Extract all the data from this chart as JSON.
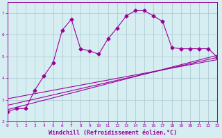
{
  "bg_color": "#d6eef2",
  "grid_color": "#b0cdd4",
  "line_color": "#990099",
  "xlabel": "Windchill (Refroidissement éolien,°C)",
  "xlim": [
    0,
    23
  ],
  "ylim": [
    2,
    7.5
  ],
  "xticks": [
    0,
    1,
    2,
    3,
    4,
    5,
    6,
    7,
    8,
    9,
    10,
    11,
    12,
    13,
    14,
    15,
    16,
    17,
    18,
    19,
    20,
    21,
    22,
    23
  ],
  "yticks": [
    2,
    3,
    4,
    5,
    6,
    7
  ],
  "main_x": [
    0,
    1,
    2,
    3,
    4,
    5,
    6,
    7,
    8,
    9,
    10,
    11,
    12,
    13,
    14,
    15,
    16,
    17,
    18,
    19,
    20,
    21,
    22,
    23
  ],
  "main_y": [
    2.45,
    2.6,
    2.6,
    3.45,
    4.1,
    4.7,
    6.2,
    6.7,
    5.35,
    5.25,
    5.1,
    5.8,
    6.3,
    6.85,
    7.1,
    7.1,
    6.85,
    6.6,
    5.4,
    5.35,
    5.35,
    5.35,
    5.35,
    4.95
  ],
  "line1_x": [
    0,
    23
  ],
  "line1_y": [
    2.55,
    5.05
  ],
  "line2_x": [
    0,
    23
  ],
  "line2_y": [
    2.75,
    4.95
  ],
  "line3_x": [
    0,
    23
  ],
  "line3_y": [
    3.05,
    4.85
  ],
  "marker": "D",
  "marker_size": 2.5,
  "linewidth": 0.8,
  "tick_fontsize": 4.5,
  "label_fontsize": 6.0
}
